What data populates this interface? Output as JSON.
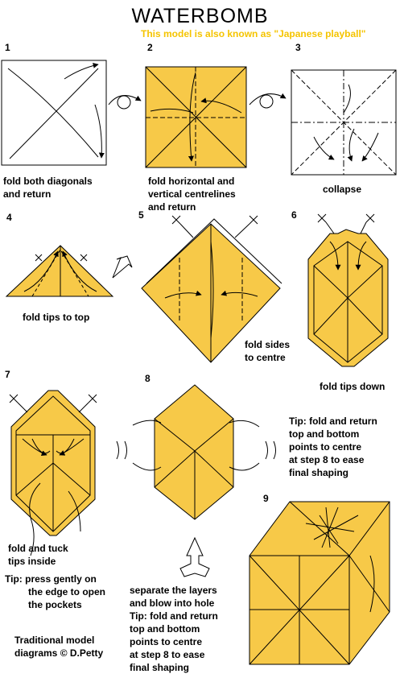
{
  "title": "WATERBOMB",
  "subtitle": "This model is also known as \"Japanese playball\"",
  "colors": {
    "paper": "#f7c948",
    "outline": "#000000",
    "subtitle": "#f5c400"
  },
  "steps": [
    {
      "number": "1",
      "caption": [
        "fold both diagonals",
        "and return"
      ]
    },
    {
      "number": "2",
      "caption": [
        "fold horizontal and",
        "vertical centrelines",
        "and return"
      ]
    },
    {
      "number": "3",
      "caption": [
        "collapse"
      ]
    },
    {
      "number": "4",
      "caption": [
        "fold tips to top"
      ]
    },
    {
      "number": "5",
      "caption": [
        "fold sides",
        "to centre"
      ]
    },
    {
      "number": "6",
      "caption": [
        "fold tips down"
      ]
    },
    {
      "number": "7",
      "caption": [
        "fold and tuck",
        "tips inside"
      ]
    },
    {
      "number": "8",
      "caption": [
        "separate the layers",
        "and blow into hole"
      ]
    },
    {
      "number": "9",
      "caption": []
    }
  ],
  "tips": {
    "tip_press": [
      "Tip: press gently on",
      "the edge to open",
      "the pockets"
    ],
    "tip_right": [
      "Tip: fold and return",
      "top and bottom",
      "points to centre",
      "at step 8 to ease",
      "final shaping"
    ],
    "tip_bottom": [
      "Tip: fold and return",
      "top and bottom",
      "points to centre",
      "at step 8 to ease",
      "final shaping"
    ]
  },
  "credit": [
    "Traditional model",
    "diagrams © D.Petty"
  ]
}
